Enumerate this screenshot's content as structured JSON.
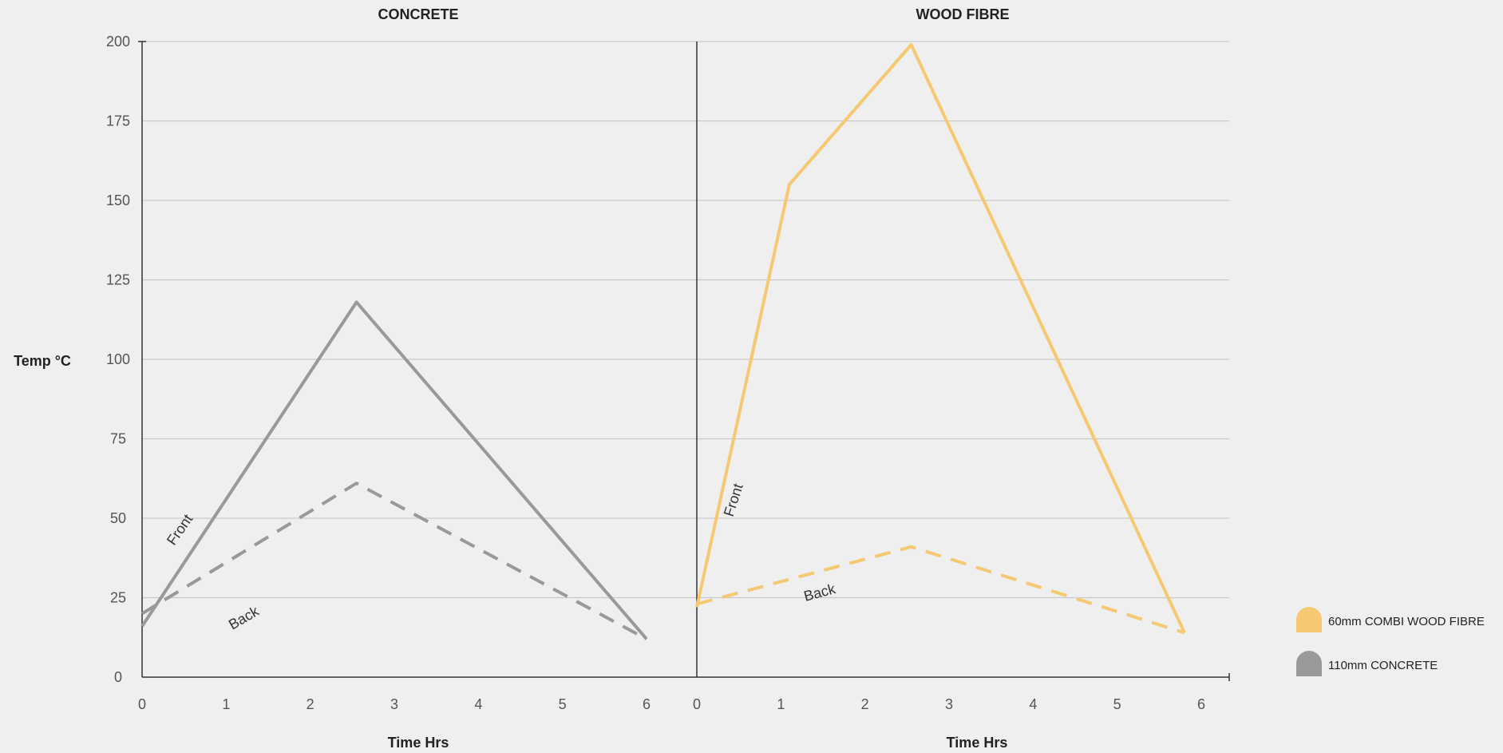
{
  "ylabel": "Temp °C",
  "legend": [
    {
      "label": "60mm COMBI WOOD FIBRE",
      "color": "#f5c872"
    },
    {
      "label": "110mm CONCRETE",
      "color": "#999999"
    }
  ],
  "chart_data": [
    {
      "type": "line",
      "title": "CONCRETE",
      "xlabel": "Time Hrs",
      "ylabel": "Temp °C",
      "xlim": [
        0,
        6
      ],
      "ylim": [
        0,
        200
      ],
      "xticks": [
        "0",
        "1",
        "2",
        "3",
        "4",
        "5",
        "6"
      ],
      "yticks": [
        "0",
        "25",
        "50",
        "75",
        "100",
        "125",
        "150",
        "175",
        "200"
      ],
      "grid": true,
      "color": "#999999",
      "series": [
        {
          "name": "Front",
          "style": "solid",
          "x": [
            0,
            2.55,
            6
          ],
          "y": [
            16,
            118,
            12
          ]
        },
        {
          "name": "Back",
          "style": "dashed",
          "x": [
            0,
            2.55,
            6
          ],
          "y": [
            20,
            61,
            12
          ]
        }
      ]
    },
    {
      "type": "line",
      "title": "WOOD FIBRE",
      "xlabel": "Time Hrs",
      "ylabel": "Temp °C",
      "xlim": [
        0,
        6
      ],
      "ylim": [
        0,
        200
      ],
      "xticks": [
        "0",
        "1",
        "2",
        "3",
        "4",
        "5",
        "6"
      ],
      "yticks": [
        "0",
        "25",
        "50",
        "75",
        "100",
        "125",
        "150",
        "175",
        "200"
      ],
      "grid": true,
      "color": "#f5c872",
      "series": [
        {
          "name": "Front",
          "style": "solid",
          "x": [
            0,
            1.1,
            2.55,
            5.8
          ],
          "y": [
            22,
            155,
            199,
            14
          ]
        },
        {
          "name": "Back",
          "style": "dashed",
          "x": [
            0,
            2.55,
            5.8
          ],
          "y": [
            23,
            41,
            14
          ]
        }
      ]
    }
  ]
}
